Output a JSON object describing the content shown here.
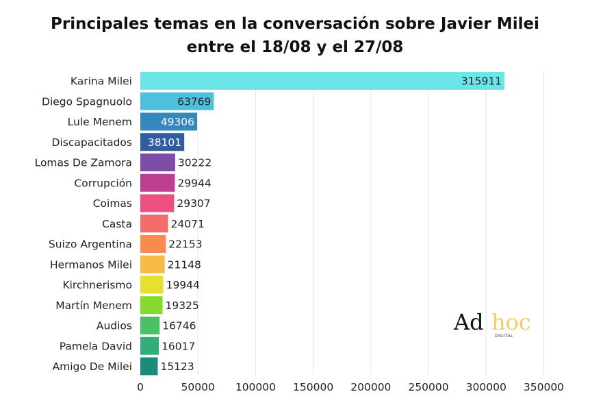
{
  "chart_data": {
    "type": "bar",
    "orientation": "horizontal",
    "title_line1": "Principales temas en la conversación sobre Javier Milei",
    "title_line2": "entre el 18/08 y el 27/08",
    "categories": [
      "Karina Milei",
      "Diego Spagnuolo",
      "Lule Menem",
      "Discapacitados",
      "Lomas De Zamora",
      "Corrupción",
      "Coimas",
      "Casta",
      "Suizo Argentina",
      "Hermanos Milei",
      "Kirchnerismo",
      "Martín Menem",
      "Audios",
      "Pamela David",
      "Amigo De Milei"
    ],
    "values": [
      315911,
      63769,
      49306,
      38101,
      30222,
      29944,
      29307,
      24071,
      22153,
      21148,
      19944,
      19325,
      16746,
      16017,
      15123
    ],
    "colors": [
      "#6de4e8",
      "#4ec0df",
      "#3389be",
      "#2f5d9f",
      "#7e4ea6",
      "#be3f90",
      "#ec5080",
      "#f46c6c",
      "#f98b4c",
      "#f9bb45",
      "#e6e032",
      "#88d92e",
      "#4cc065",
      "#33ae78",
      "#1b8c7c"
    ],
    "label_inside": [
      true,
      true,
      true,
      true,
      false,
      false,
      false,
      false,
      false,
      false,
      false,
      false,
      false,
      false,
      false
    ],
    "label_colors": [
      "#222222",
      "#222222",
      "#ffffff",
      "#ffffff",
      "#222222",
      "#222222",
      "#222222",
      "#222222",
      "#222222",
      "#222222",
      "#222222",
      "#222222",
      "#222222",
      "#222222",
      "#222222"
    ],
    "xlim": [
      0,
      380000
    ],
    "xticks": [
      0,
      50000,
      100000,
      150000,
      200000,
      250000,
      300000,
      350000
    ],
    "xtick_labels": [
      "0",
      "50000",
      "100000",
      "150000",
      "200000",
      "250000",
      "300000",
      "350000"
    ],
    "grid": "vertical",
    "legend": "none"
  },
  "logo": {
    "ad": "Ad",
    "hoc": "hoc",
    "sub": "DIGITAL"
  }
}
